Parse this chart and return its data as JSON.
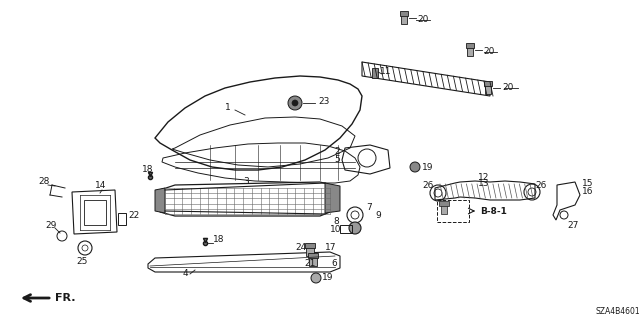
{
  "bg_color": "#ffffff",
  "line_color": "#1a1a1a",
  "diagram_code": "SZA4B4601",
  "fig_w": 6.4,
  "fig_h": 3.19,
  "dpi": 100
}
